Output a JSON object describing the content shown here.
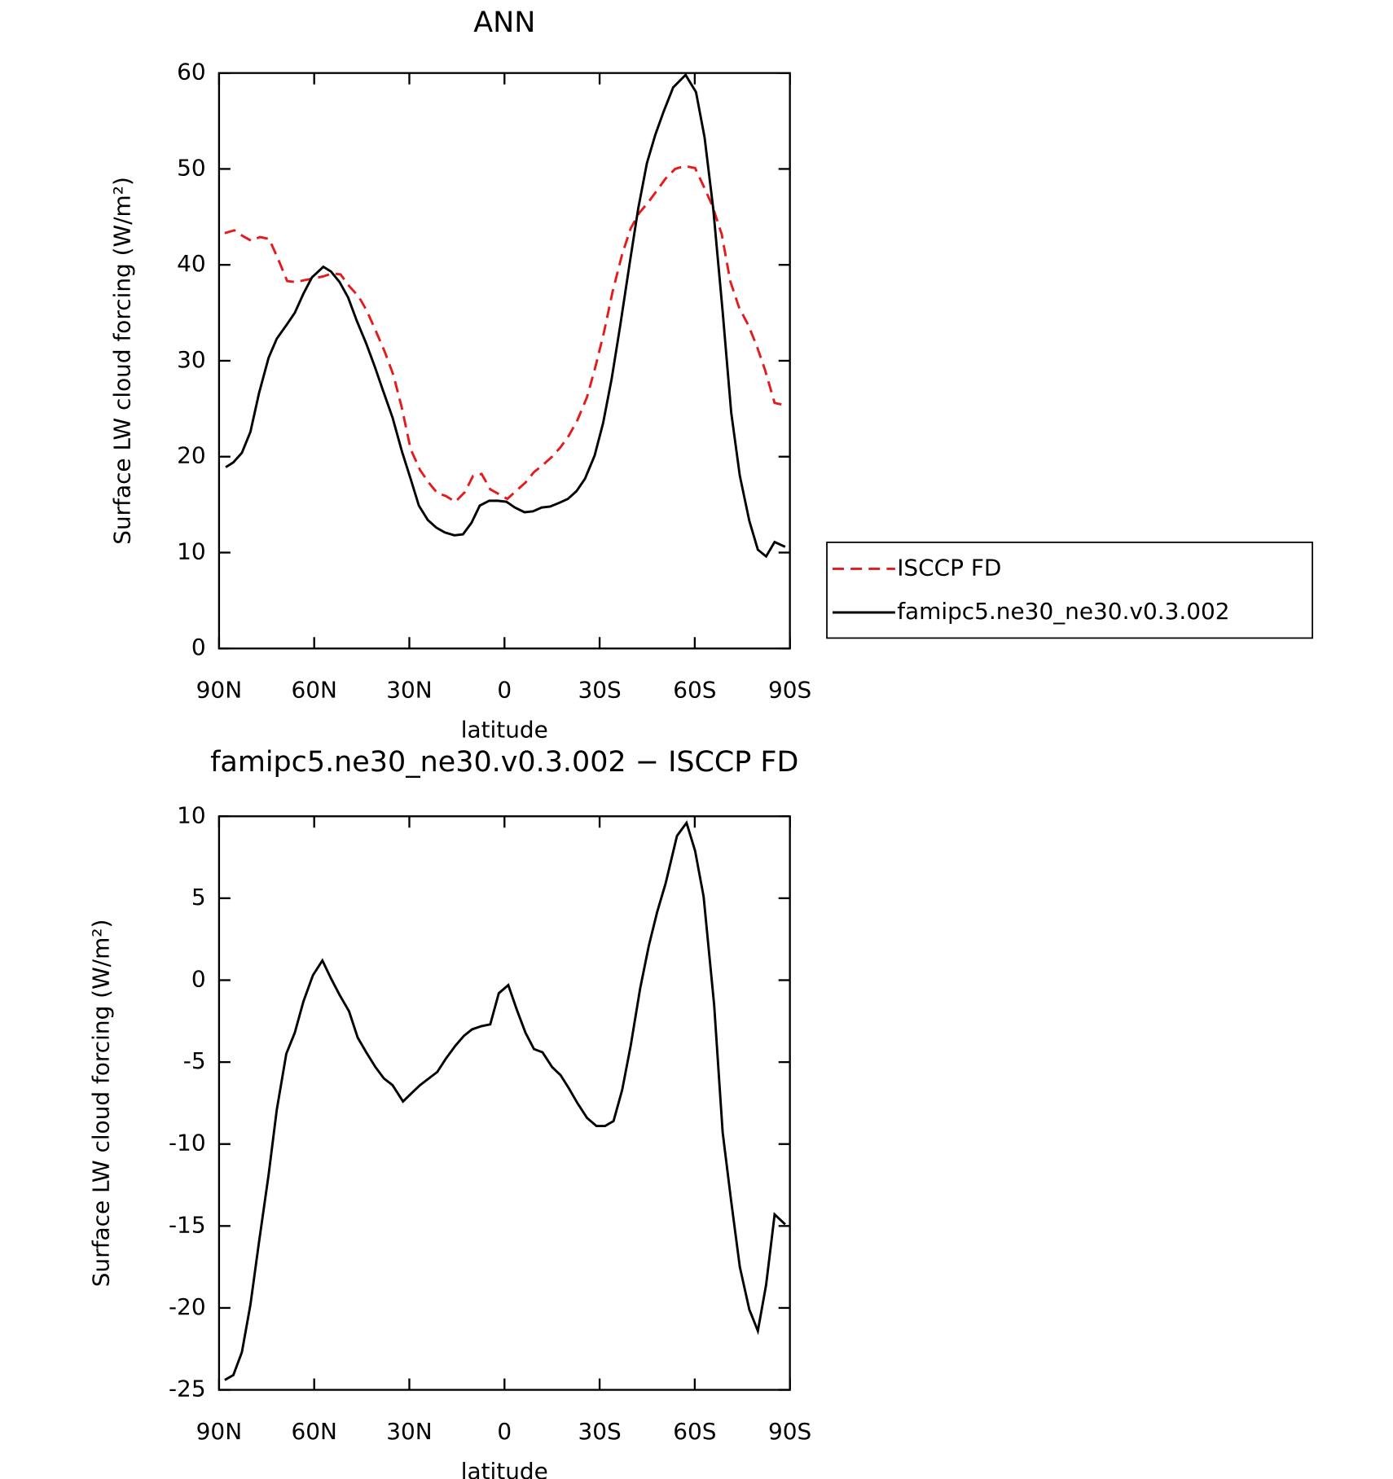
{
  "chart_data": [
    {
      "type": "line",
      "title": "ANN",
      "xlabel": "latitude",
      "ylabel": "Surface LW cloud forcing (W/m²)",
      "xlim": [
        90,
        -90
      ],
      "xticks": [
        {
          "value": 90,
          "label": "90N"
        },
        {
          "value": 60,
          "label": "60N"
        },
        {
          "value": 30,
          "label": "30N"
        },
        0,
        {
          "value": -30,
          "label": "30S"
        },
        {
          "value": -60,
          "label": "60S"
        },
        {
          "value": -90,
          "label": "90S"
        }
      ],
      "ylim": [
        0,
        60
      ],
      "yticks": [
        0,
        10,
        20,
        30,
        40,
        50,
        60
      ],
      "legend": "right",
      "series": [
        {
          "name": "ISCCP FD",
          "color": "#e41a1c",
          "dash": true,
          "x": [
            88.2,
            85.2,
            82.5,
            79.8,
            77.1,
            74.2,
            71.5,
            68.5,
            65.8,
            63.1,
            60.1,
            57.1,
            54.4,
            51.7,
            49.0,
            46.0,
            43.4,
            40.7,
            37.7,
            35.0,
            32.3,
            29.6,
            26.6,
            23.9,
            21.2,
            18.5,
            15.5,
            12.5,
            9.9,
            7.2,
            4.5,
            1.8,
            -0.9,
            -3.9,
            -6.6,
            -9.3,
            -12.0,
            -15.0,
            -17.7,
            -20.3,
            -23.0,
            -26.0,
            -28.7,
            -31.4,
            -34.1,
            -37.1,
            -39.8,
            -42.5,
            -45.5,
            -48.2,
            -50.8,
            -53.8,
            -56.8,
            -60.1,
            -62.8,
            -65.5,
            -68.5,
            -71.2,
            -73.9,
            -76.9,
            -79.6,
            -82.2,
            -85.2,
            -87.9
          ],
          "values": [
            43.3,
            43.6,
            43.0,
            42.5,
            42.9,
            42.7,
            40.7,
            38.3,
            38.2,
            38.4,
            38.6,
            38.8,
            39.1,
            39.0,
            37.8,
            36.7,
            35.2,
            33.2,
            30.9,
            28.5,
            25.0,
            20.8,
            18.6,
            17.3,
            16.2,
            15.9,
            15.3,
            16.3,
            18.0,
            18.2,
            16.6,
            16.1,
            15.6,
            16.5,
            17.3,
            18.4,
            19.1,
            20.0,
            21.0,
            22.2,
            23.8,
            26.2,
            29.4,
            33.0,
            37.2,
            41.1,
            43.8,
            45.4,
            46.6,
            47.8,
            49.0,
            50.0,
            50.3,
            50.1,
            48.2,
            46.2,
            43.2,
            38.3,
            35.6,
            33.7,
            31.5,
            29.0,
            25.6,
            25.4
          ]
        },
        {
          "name": "famipc5.ne30_ne30.v0.3.002",
          "color": "#000000",
          "dash": false,
          "x": [
            87.9,
            85.5,
            82.8,
            80.1,
            77.4,
            74.4,
            71.8,
            68.8,
            66.1,
            63.4,
            60.7,
            57.1,
            54.7,
            52.0,
            49.3,
            46.6,
            43.6,
            40.9,
            38.3,
            35.3,
            32.3,
            29.6,
            27.0,
            24.2,
            21.5,
            18.8,
            15.8,
            13.1,
            10.4,
            7.8,
            4.8,
            2.1,
            -0.6,
            -3.3,
            -6.3,
            -9.0,
            -11.7,
            -14.4,
            -17.4,
            -20.0,
            -22.7,
            -25.4,
            -28.4,
            -31.1,
            -33.8,
            -36.5,
            -39.5,
            -42.2,
            -44.9,
            -47.6,
            -50.2,
            -53.2,
            -57.1,
            -60.4,
            -63.1,
            -65.8,
            -68.8,
            -71.5,
            -74.2,
            -77.2,
            -79.9,
            -82.5,
            -85.2,
            -88.5
          ],
          "values": [
            18.9,
            19.4,
            20.4,
            22.6,
            26.6,
            30.3,
            32.3,
            33.7,
            35.0,
            37.0,
            38.7,
            39.8,
            39.3,
            38.2,
            36.6,
            34.2,
            31.8,
            29.4,
            26.9,
            24.1,
            20.5,
            17.7,
            14.9,
            13.4,
            12.6,
            12.1,
            11.8,
            11.9,
            13.1,
            14.9,
            15.4,
            15.4,
            15.3,
            14.7,
            14.2,
            14.3,
            14.7,
            14.8,
            15.2,
            15.6,
            16.4,
            17.7,
            20.1,
            23.5,
            28.1,
            33.7,
            40.2,
            45.9,
            50.6,
            53.6,
            56.0,
            58.5,
            59.8,
            58.0,
            53.3,
            45.9,
            35.1,
            24.6,
            18.0,
            13.3,
            10.3,
            9.6,
            11.1,
            10.6
          ]
        }
      ]
    },
    {
      "type": "line",
      "title": "famipc5.ne30_ne30.v0.3.002 − ISCCP FD",
      "xlabel": "latitude",
      "ylabel": "Surface LW cloud forcing (W/m²)",
      "xlim": [
        90,
        -90
      ],
      "xticks": [
        {
          "value": 90,
          "label": "90N"
        },
        {
          "value": 60,
          "label": "60N"
        },
        {
          "value": 30,
          "label": "30N"
        },
        0,
        {
          "value": -30,
          "label": "30S"
        },
        {
          "value": -60,
          "label": "60S"
        },
        {
          "value": -90,
          "label": "90S"
        }
      ],
      "ylim": [
        -25,
        10
      ],
      "yticks": [
        -25,
        -20,
        -15,
        -10,
        -5,
        0,
        5,
        10
      ],
      "series": [
        {
          "color": "#000000",
          "dash": false,
          "x": [
            88.2,
            85.5,
            82.8,
            80.1,
            77.4,
            74.4,
            71.8,
            68.8,
            66.1,
            63.4,
            60.4,
            57.4,
            54.7,
            52.0,
            49.0,
            46.3,
            43.6,
            40.7,
            38.0,
            35.3,
            32.0,
            29.3,
            26.6,
            23.9,
            21.2,
            18.5,
            15.5,
            12.8,
            10.2,
            7.2,
            4.5,
            1.8,
            -1.2,
            -3.9,
            -6.6,
            -9.3,
            -12.0,
            -15.0,
            -17.7,
            -20.3,
            -23.0,
            -26.0,
            -29.0,
            -31.7,
            -34.4,
            -37.1,
            -39.8,
            -42.8,
            -45.5,
            -48.2,
            -50.8,
            -54.4,
            -57.4,
            -60.1,
            -62.8,
            -66.1,
            -68.8,
            -71.5,
            -74.2,
            -77.2,
            -79.9,
            -82.5,
            -85.2,
            -88.5
          ],
          "values": [
            -24.4,
            -24.1,
            -22.7,
            -19.8,
            -16.0,
            -11.9,
            -7.9,
            -4.5,
            -3.2,
            -1.3,
            0.3,
            1.2,
            0.1,
            -0.9,
            -1.9,
            -3.5,
            -4.4,
            -5.3,
            -6.0,
            -6.4,
            -7.4,
            -6.9,
            -6.4,
            -6.0,
            -5.6,
            -4.8,
            -4.0,
            -3.4,
            -3.0,
            -2.8,
            -2.7,
            -0.8,
            -0.3,
            -1.8,
            -3.2,
            -4.2,
            -4.4,
            -5.3,
            -5.8,
            -6.6,
            -7.5,
            -8.4,
            -8.9,
            -8.9,
            -8.6,
            -6.7,
            -4.0,
            -0.5,
            2.1,
            4.2,
            5.9,
            8.8,
            9.6,
            7.9,
            5.1,
            -1.5,
            -9.3,
            -13.5,
            -17.5,
            -20.1,
            -21.4,
            -18.6,
            -14.3,
            -14.9
          ]
        }
      ]
    }
  ]
}
